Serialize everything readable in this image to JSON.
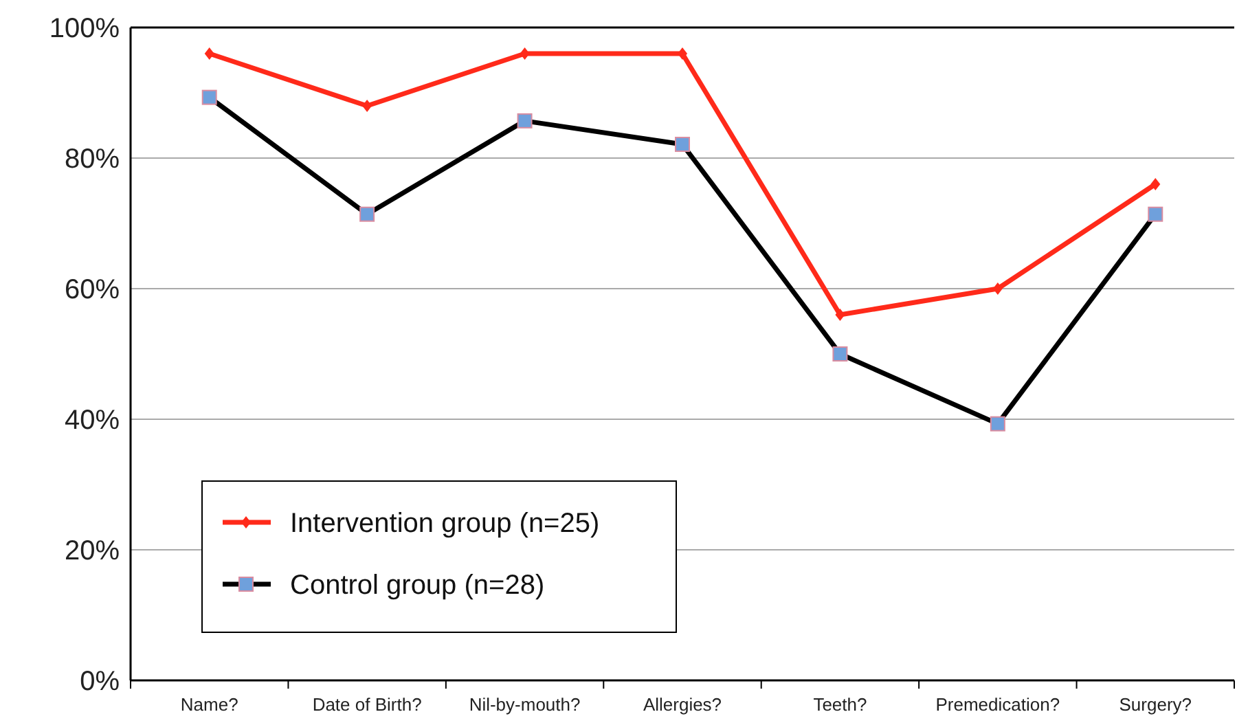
{
  "chart_data": {
    "type": "line",
    "categories": [
      "Name?",
      "Date of Birth?",
      "Nil-by-mouth?",
      "Allergies?",
      "Teeth?",
      "Premedication?",
      "Surgery?"
    ],
    "series": [
      {
        "name": "Intervention group (n=25)",
        "color": "#ff2a1a",
        "marker": "diamond",
        "values": [
          96,
          88,
          96,
          96,
          56,
          60,
          76
        ]
      },
      {
        "name": "Control group (n=28)",
        "color": "#000000",
        "marker": "square",
        "values": [
          89.3,
          71.4,
          85.7,
          82.1,
          50,
          39.3,
          71.4
        ]
      }
    ],
    "ylim": [
      0,
      100
    ],
    "yticks": [
      {
        "value": 0,
        "label": "0%"
      },
      {
        "value": 20,
        "label": "20%"
      },
      {
        "value": 40,
        "label": "40%"
      },
      {
        "value": 60,
        "label": "60%"
      },
      {
        "value": 80,
        "label": "80%"
      },
      {
        "value": 100,
        "label": "100%"
      }
    ],
    "grid": "y",
    "legend": "bottom left",
    "line_style": "solid"
  }
}
